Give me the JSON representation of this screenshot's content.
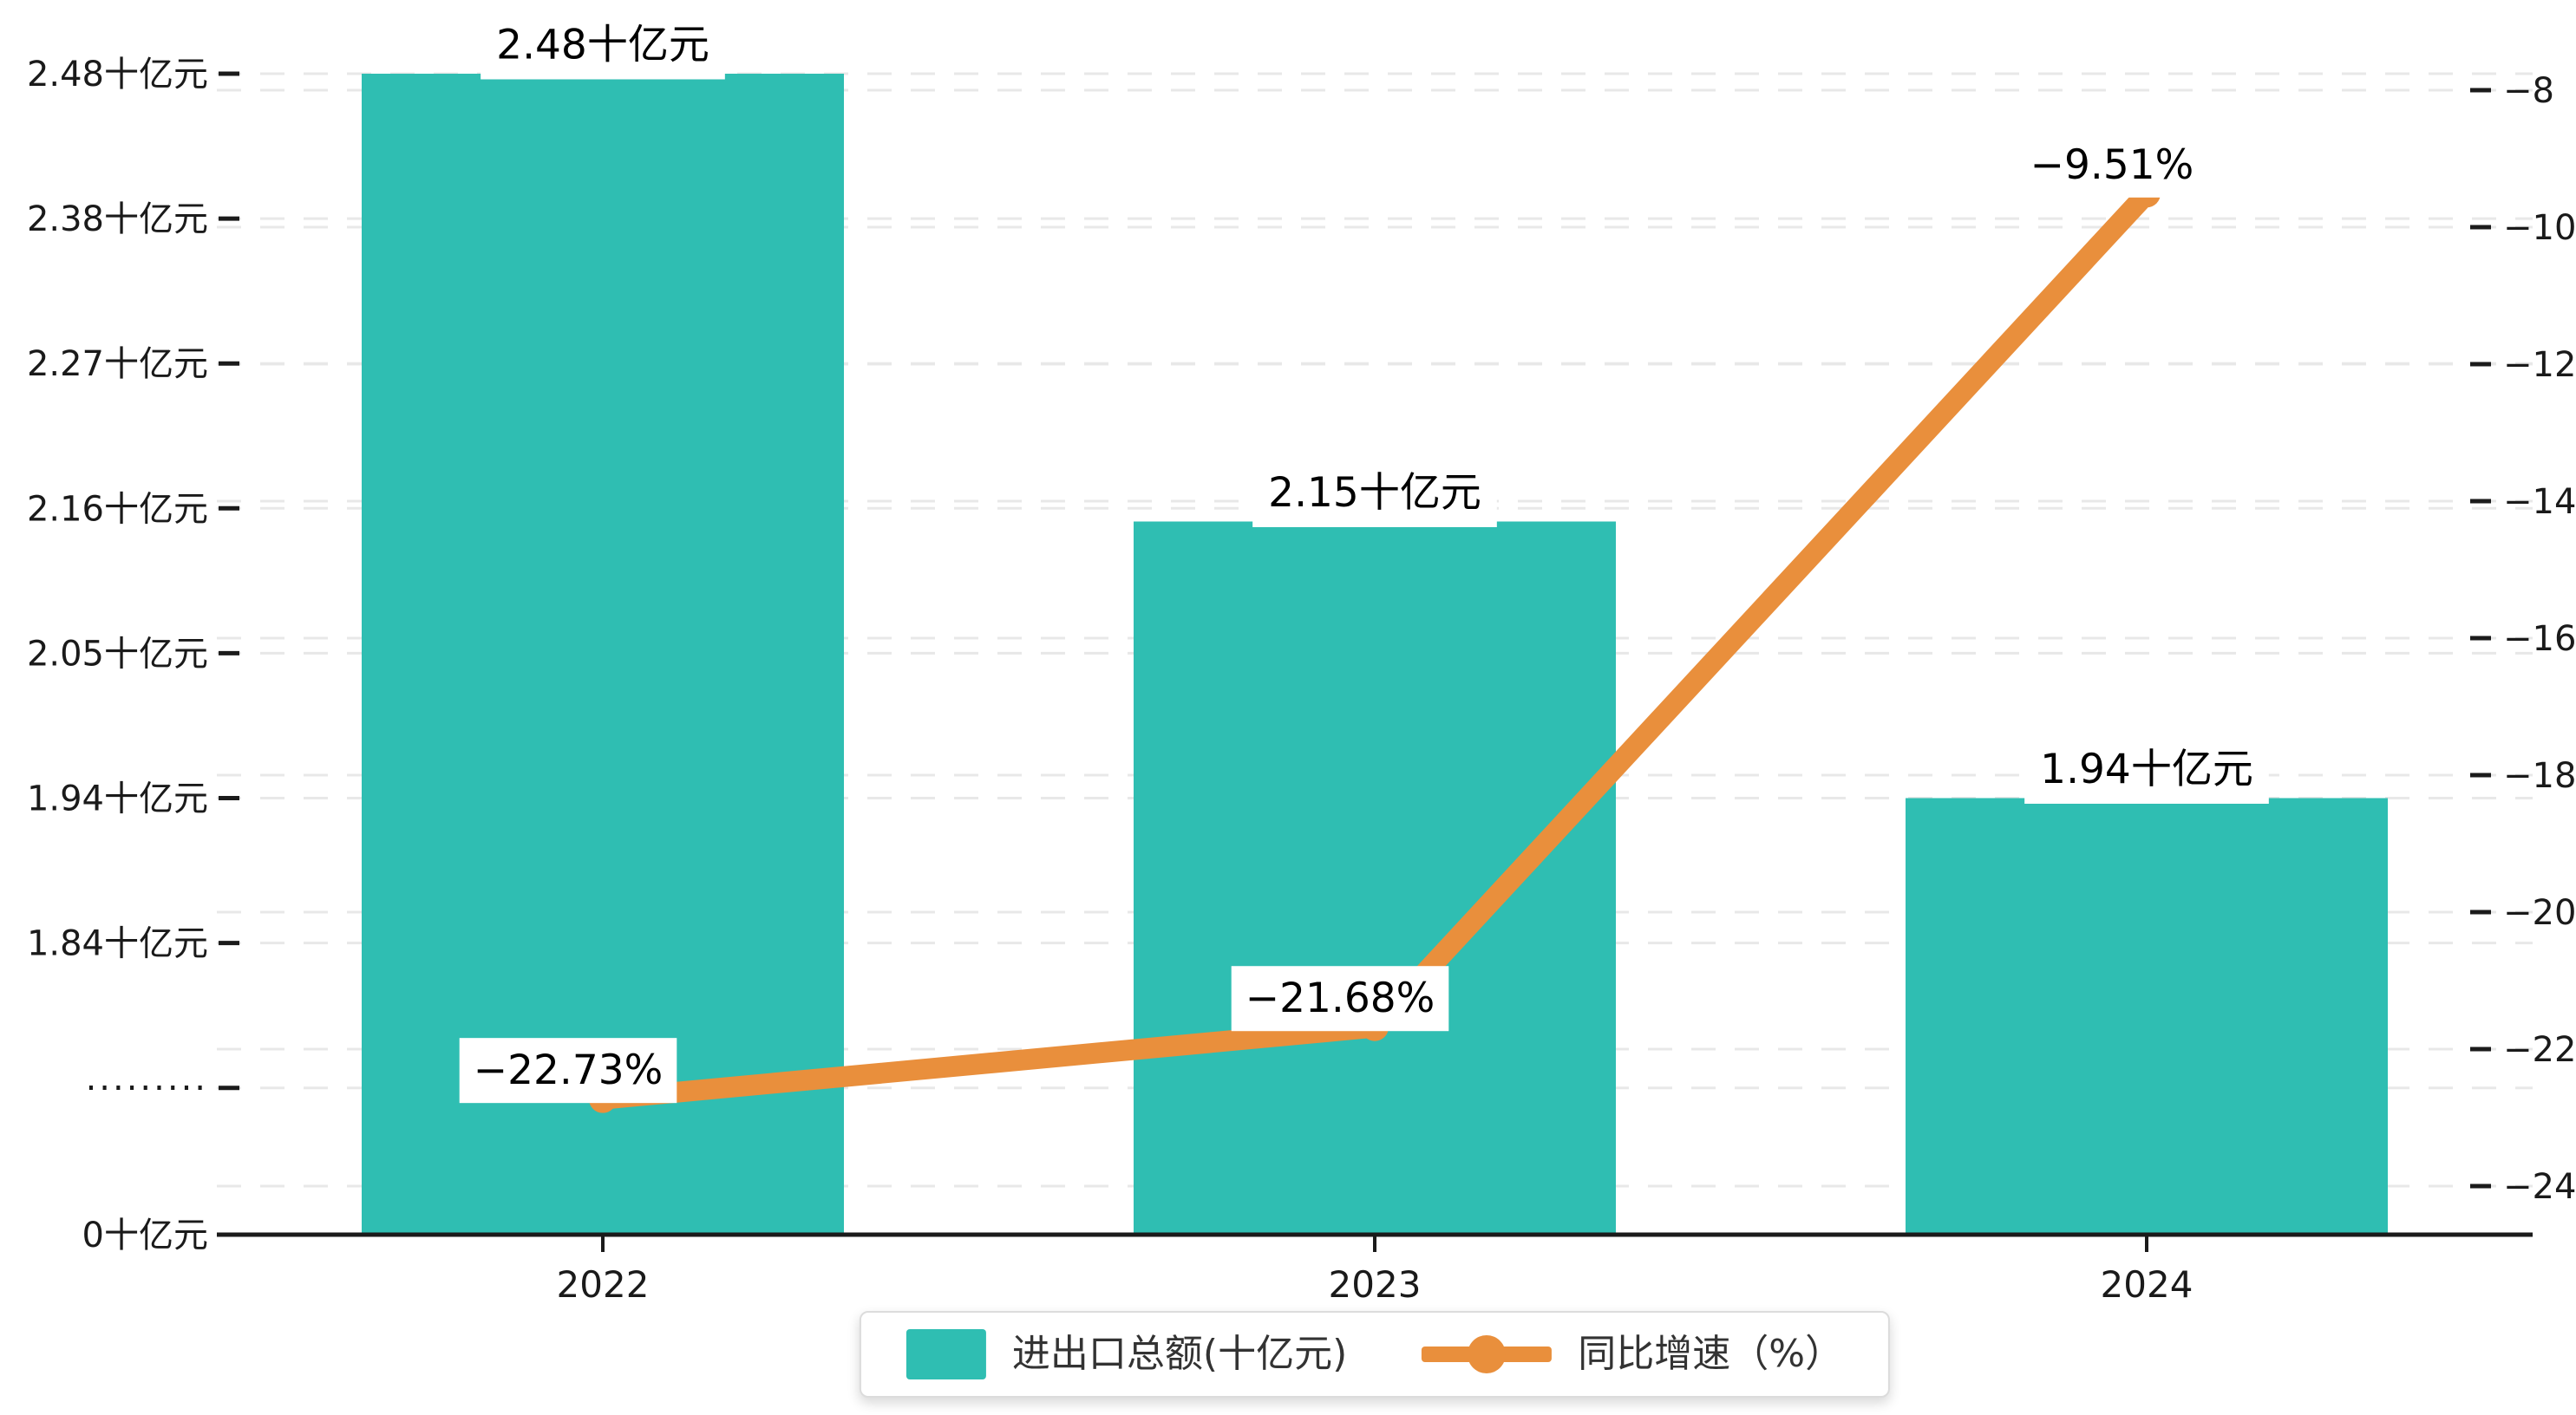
{
  "chart_data": {
    "type": "bar+line",
    "categories": [
      "2022",
      "2023",
      "2024"
    ],
    "series": [
      {
        "name": "进出口总额(十亿元)",
        "type": "bar",
        "axis": "left",
        "color": "#2fbeb2",
        "values": [
          2.48,
          2.15,
          1.94
        ],
        "labels": [
          "2.48十亿元",
          "2.15十亿元",
          "1.94十亿元"
        ]
      },
      {
        "name": "同比增速（%）",
        "type": "line",
        "axis": "right",
        "color": "#e98f3c",
        "values": [
          -22.73,
          -21.68,
          -9.51
        ],
        "labels": [
          "−22.73%",
          "−21.68%",
          "−9.51%"
        ]
      }
    ],
    "left_axis": {
      "tick_labels": [
        "2.48十亿元",
        "2.38十亿元",
        "2.27十亿元",
        "2.16十亿元",
        "2.05十亿元",
        "1.94十亿元",
        "1.84十亿元",
        "·········",
        "0十亿元"
      ],
      "tick_values": [
        2.48,
        2.38,
        2.27,
        2.16,
        2.05,
        1.94,
        1.84,
        null,
        0
      ],
      "axis_break": true
    },
    "right_axis": {
      "tick_labels": [
        "−8",
        "−10",
        "−12",
        "−14",
        "−16",
        "−18",
        "−20",
        "−22",
        "−24"
      ],
      "tick_values": [
        -8,
        -10,
        -12,
        -14,
        -16,
        -18,
        -20,
        -22,
        -24
      ],
      "range": [
        -24,
        -8
      ]
    },
    "grid": {
      "show": true,
      "style": "dashed",
      "color": "#e8e8e8"
    },
    "legend_position": "bottom-center",
    "colors": {
      "bar": "#2fbeb2",
      "line": "#e98f3c",
      "axis_line": "#1b1b1b",
      "tick_text": "#1a1a1a",
      "label_text": "#000000",
      "label_bg": "#ffffff",
      "grid": "#e8e8e8"
    }
  }
}
